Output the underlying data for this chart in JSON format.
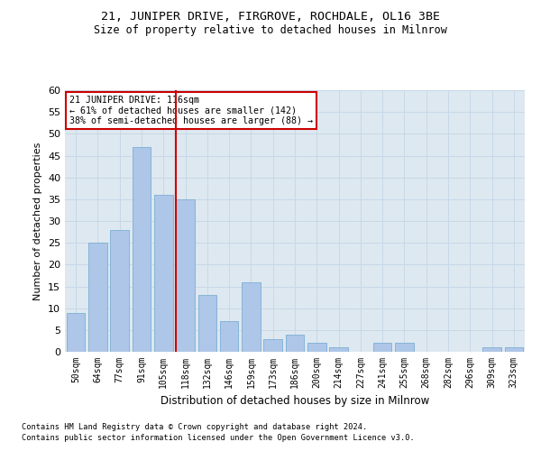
{
  "title1": "21, JUNIPER DRIVE, FIRGROVE, ROCHDALE, OL16 3BE",
  "title2": "Size of property relative to detached houses in Milnrow",
  "xlabel": "Distribution of detached houses by size in Milnrow",
  "ylabel": "Number of detached properties",
  "categories": [
    "50sqm",
    "64sqm",
    "77sqm",
    "91sqm",
    "105sqm",
    "118sqm",
    "132sqm",
    "146sqm",
    "159sqm",
    "173sqm",
    "186sqm",
    "200sqm",
    "214sqm",
    "227sqm",
    "241sqm",
    "255sqm",
    "268sqm",
    "282sqm",
    "296sqm",
    "309sqm",
    "323sqm"
  ],
  "values": [
    9,
    25,
    28,
    47,
    36,
    35,
    13,
    7,
    16,
    3,
    4,
    2,
    1,
    0,
    2,
    2,
    0,
    0,
    0,
    1,
    1
  ],
  "bar_color": "#aec6e8",
  "bar_edge_color": "#7bafd4",
  "vline_color": "#cc0000",
  "annotation_text": "21 JUNIPER DRIVE: 116sqm\n← 61% of detached houses are smaller (142)\n38% of semi-detached houses are larger (88) →",
  "annotation_box_color": "#ffffff",
  "annotation_box_edge": "#cc0000",
  "ylim": [
    0,
    60
  ],
  "yticks": [
    0,
    5,
    10,
    15,
    20,
    25,
    30,
    35,
    40,
    45,
    50,
    55,
    60
  ],
  "grid_color": "#c8d8e8",
  "background_color": "#dde8f0",
  "footnote1": "Contains HM Land Registry data © Crown copyright and database right 2024.",
  "footnote2": "Contains public sector information licensed under the Open Government Licence v3.0."
}
